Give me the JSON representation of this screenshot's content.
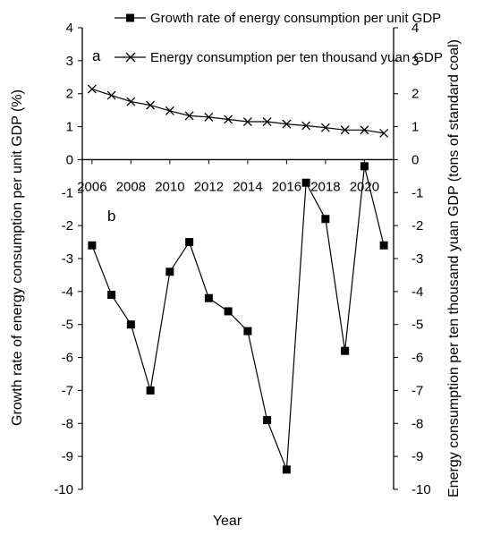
{
  "chart_data": {
    "type": "line",
    "xlabel": "Year",
    "ylabel_left": "Growth rate of energy consumption per unit GDP (%)",
    "ylabel_right": "Energy consumption per ten thousand yuan GDP (tons of standard coal)",
    "ylim": [
      -10,
      4
    ],
    "yticks": [
      4,
      3,
      2,
      1,
      0,
      -1,
      -2,
      -3,
      -4,
      -5,
      -6,
      -7,
      -8,
      -9,
      -10
    ],
    "xticks": [
      2006,
      2008,
      2010,
      2012,
      2014,
      2016,
      2018,
      2020
    ],
    "xlim": [
      2005.5,
      2021.5
    ],
    "annotations": [
      "a",
      "b"
    ],
    "legend_position": "top",
    "series": [
      {
        "name": "Growth rate of energy consumption per unit GDP",
        "marker": "square",
        "x": [
          2006,
          2007,
          2008,
          2009,
          2010,
          2011,
          2012,
          2013,
          2014,
          2015,
          2016,
          2017,
          2018,
          2019,
          2020,
          2021
        ],
        "values": [
          -2.6,
          -4.1,
          -5.0,
          -7.0,
          -3.4,
          -2.5,
          -4.2,
          -4.6,
          -5.2,
          -7.9,
          -9.4,
          -0.7,
          -1.8,
          -5.8,
          -0.2,
          -2.6
        ]
      },
      {
        "name": "Energy consumption per ten thousand yuan GDP",
        "marker": "x",
        "x": [
          2006,
          2007,
          2008,
          2009,
          2010,
          2011,
          2012,
          2013,
          2014,
          2015,
          2016,
          2017,
          2018,
          2019,
          2020,
          2021
        ],
        "values": [
          2.14,
          1.95,
          1.76,
          1.65,
          1.48,
          1.33,
          1.29,
          1.22,
          1.15,
          1.15,
          1.08,
          1.03,
          0.97,
          0.9,
          0.9,
          0.8
        ]
      }
    ],
    "colors": {
      "line": "#000000",
      "axis": "#000000",
      "background": "#ffffff"
    }
  }
}
